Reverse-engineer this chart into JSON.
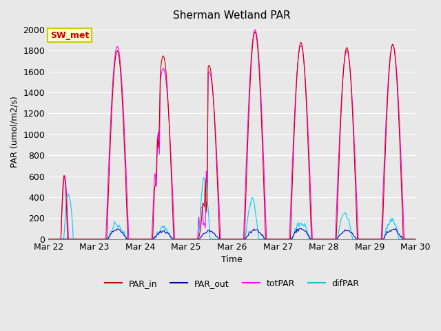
{
  "title": "Sherman Wetland PAR",
  "ylabel": "PAR (umol/m2/s)",
  "xlabel": "Time",
  "ylim": [
    0,
    2050
  ],
  "yticks": [
    0,
    200,
    400,
    600,
    800,
    1000,
    1200,
    1400,
    1600,
    1800,
    2000
  ],
  "bg_color": "#e8e8e8",
  "plot_bg": "#e8e8e8",
  "grid_color": "white",
  "colors": {
    "PAR_in": "#cc0000",
    "PAR_out": "#0000cc",
    "totPAR": "#ff00ff",
    "difPAR": "#00ccff"
  },
  "annotation_text": "SW_met",
  "annotation_bg": "#ffffcc",
  "annotation_border": "#cccc00",
  "annotation_text_color": "#cc0000",
  "legend_colors": {
    "PAR_in": "#cc0000",
    "PAR_out": "#0000aa",
    "totPAR": "#ff00ff",
    "difPAR": "#00cccc"
  },
  "figsize": [
    6.4,
    4.8
  ],
  "dpi": 100
}
